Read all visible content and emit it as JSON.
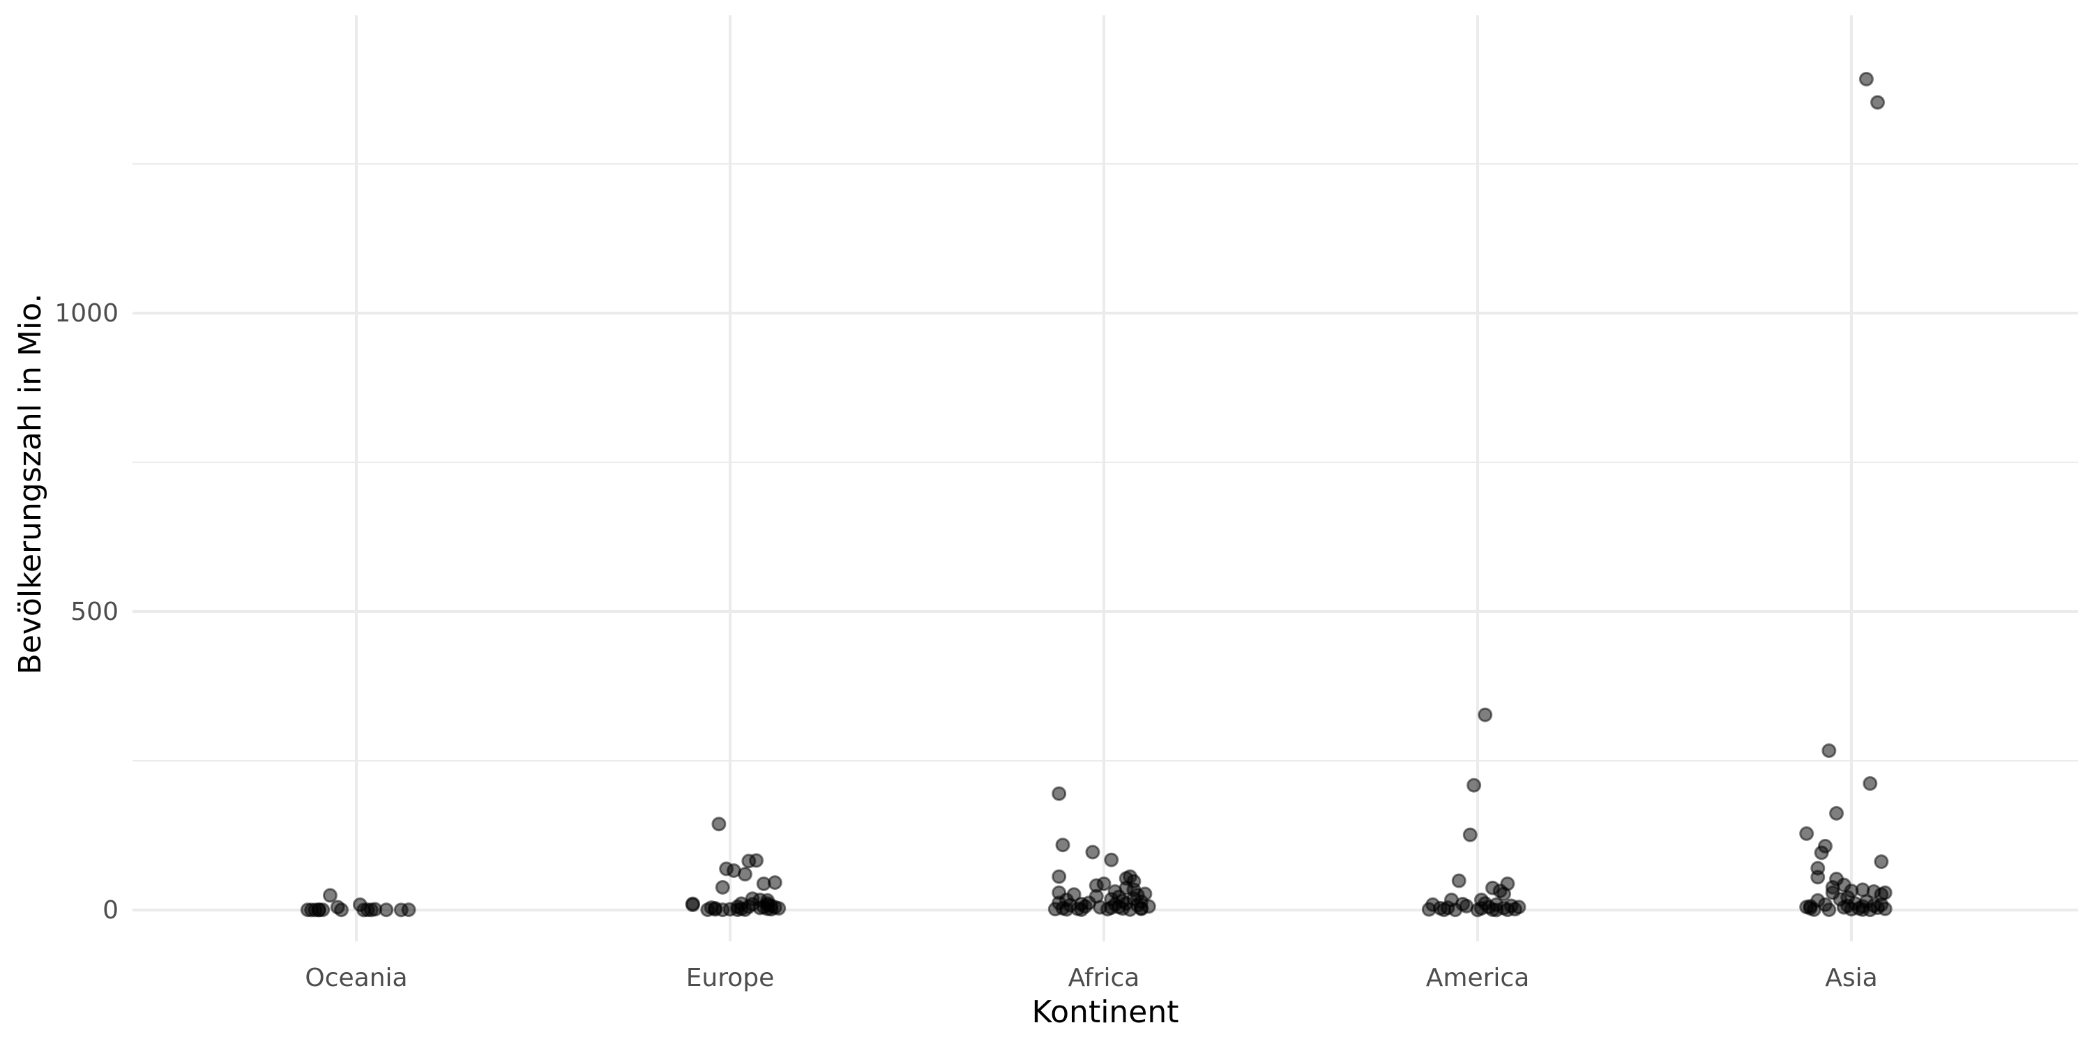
{
  "chart_data": {
    "type": "scatter",
    "title": "",
    "xlabel": "Kontinent",
    "ylabel": "Bevölkerungszahl in Mio.",
    "categories": [
      "Oceania",
      "Europe",
      "Africa",
      "America",
      "Asia"
    ],
    "y_ticks": [
      "0",
      "500",
      "1000"
    ],
    "ylim": [
      -55,
      1495
    ],
    "grid": true,
    "legend": "none",
    "point_color": "#000000",
    "series": [
      {
        "category": "Oceania",
        "points": [
          {
            "x": 0.14,
            "y": 0.5
          },
          {
            "x": 0.12,
            "y": 0.2
          },
          {
            "x": 0.08,
            "y": 0.3
          },
          {
            "x": 0.04,
            "y": 0.2
          },
          {
            "x": 0.03,
            "y": 0.4
          },
          {
            "x": 0.02,
            "y": 0.1
          },
          {
            "x": 0.01,
            "y": 8.9
          },
          {
            "x": -0.04,
            "y": 0.3
          },
          {
            "x": -0.05,
            "y": 4.8
          },
          {
            "x": -0.09,
            "y": 0.3
          },
          {
            "x": -0.1,
            "y": 0.2
          },
          {
            "x": -0.11,
            "y": 0.2
          },
          {
            "x": -0.13,
            "y": 0.3
          },
          {
            "x": -0.1,
            "y": 0.4
          },
          {
            "x": -0.07,
            "y": 24.5
          },
          {
            "x": 0.05,
            "y": 1.2
          },
          {
            "x": -0.12,
            "y": 0.1
          }
        ]
      },
      {
        "category": "Europe",
        "points": [
          {
            "x": -0.1,
            "y": 10.4
          },
          {
            "x": -0.1,
            "y": 8.7
          },
          {
            "x": -0.06,
            "y": 0.5
          },
          {
            "x": -0.05,
            "y": 4.0
          },
          {
            "x": -0.04,
            "y": 1.1
          },
          {
            "x": -0.04,
            "y": 2.9
          },
          {
            "x": -0.02,
            "y": 0.4
          },
          {
            "x": -0.02,
            "y": 38.0
          },
          {
            "x": -0.01,
            "y": 69.0
          },
          {
            "x": -0.03,
            "y": 144.0
          },
          {
            "x": 0.0,
            "y": 1.2
          },
          {
            "x": 0.01,
            "y": 66.0
          },
          {
            "x": 0.02,
            "y": 0.5
          },
          {
            "x": 0.02,
            "y": 5.5
          },
          {
            "x": 0.03,
            "y": 2.1
          },
          {
            "x": 0.03,
            "y": 10.6
          },
          {
            "x": 0.04,
            "y": 60.0
          },
          {
            "x": 0.04,
            "y": 0.6
          },
          {
            "x": 0.05,
            "y": 82.0
          },
          {
            "x": 0.05,
            "y": 5.8
          },
          {
            "x": 0.06,
            "y": 19.0
          },
          {
            "x": 0.06,
            "y": 9.7
          },
          {
            "x": 0.07,
            "y": 83.0
          },
          {
            "x": 0.08,
            "y": 17.0
          },
          {
            "x": 0.08,
            "y": 3.5
          },
          {
            "x": 0.09,
            "y": 4.8
          },
          {
            "x": 0.09,
            "y": 44.0
          },
          {
            "x": 0.1,
            "y": 8.5
          },
          {
            "x": 0.1,
            "y": 2.0
          },
          {
            "x": 0.11,
            "y": 7.0
          },
          {
            "x": 0.11,
            "y": 1.3
          },
          {
            "x": 0.1,
            "y": 11.0
          },
          {
            "x": 0.1,
            "y": 16.0
          },
          {
            "x": 0.12,
            "y": 46.0
          },
          {
            "x": 0.12,
            "y": 4.6
          },
          {
            "x": 0.13,
            "y": 2.8
          }
        ]
      },
      {
        "category": "Africa",
        "points": [
          {
            "x": -0.13,
            "y": 1.5
          },
          {
            "x": -0.12,
            "y": 195.0
          },
          {
            "x": -0.12,
            "y": 12.0
          },
          {
            "x": -0.12,
            "y": 29.0
          },
          {
            "x": -0.12,
            "y": 56.0
          },
          {
            "x": -0.11,
            "y": 3.0
          },
          {
            "x": -0.11,
            "y": 109.0
          },
          {
            "x": -0.1,
            "y": 1.0
          },
          {
            "x": -0.1,
            "y": 17.0
          },
          {
            "x": -0.09,
            "y": 8.0
          },
          {
            "x": -0.08,
            "y": 26.0
          },
          {
            "x": -0.07,
            "y": 2.0
          },
          {
            "x": -0.06,
            "y": 0.6
          },
          {
            "x": -0.05,
            "y": 6.0
          },
          {
            "x": -0.04,
            "y": 12.0
          },
          {
            "x": -0.03,
            "y": 97.0
          },
          {
            "x": -0.02,
            "y": 41.0
          },
          {
            "x": -0.02,
            "y": 23.0
          },
          {
            "x": -0.01,
            "y": 4.5
          },
          {
            "x": 0.0,
            "y": 44.0
          },
          {
            "x": 0.01,
            "y": 1.3
          },
          {
            "x": 0.02,
            "y": 84.0
          },
          {
            "x": 0.02,
            "y": 18.0
          },
          {
            "x": 0.03,
            "y": 9.5
          },
          {
            "x": 0.03,
            "y": 31.0
          },
          {
            "x": 0.04,
            "y": 5.0
          },
          {
            "x": 0.04,
            "y": 22.0
          },
          {
            "x": 0.05,
            "y": 15.0
          },
          {
            "x": 0.05,
            "y": 2.5
          },
          {
            "x": 0.06,
            "y": 37.0
          },
          {
            "x": 0.06,
            "y": 11.0
          },
          {
            "x": 0.07,
            "y": 56.0
          },
          {
            "x": 0.07,
            "y": 0.8
          },
          {
            "x": 0.08,
            "y": 48.0
          },
          {
            "x": 0.08,
            "y": 19.0
          },
          {
            "x": 0.09,
            "y": 8.0
          },
          {
            "x": 0.09,
            "y": 25.0
          },
          {
            "x": 0.1,
            "y": 3.0
          },
          {
            "x": 0.1,
            "y": 14.0
          },
          {
            "x": 0.11,
            "y": 27.0
          },
          {
            "x": 0.12,
            "y": 6.0
          },
          {
            "x": 0.08,
            "y": 34.0
          },
          {
            "x": 0.02,
            "y": 4.0
          },
          {
            "x": -0.06,
            "y": 10.0
          },
          {
            "x": 0.06,
            "y": 53.0
          },
          {
            "x": 0.1,
            "y": 1.9
          }
        ]
      },
      {
        "category": "America",
        "points": [
          {
            "x": -0.13,
            "y": 1.0
          },
          {
            "x": -0.12,
            "y": 9.0
          },
          {
            "x": -0.1,
            "y": 3.0
          },
          {
            "x": -0.09,
            "y": 0.4
          },
          {
            "x": -0.07,
            "y": 17.0
          },
          {
            "x": -0.06,
            "y": 0.3
          },
          {
            "x": -0.05,
            "y": 49.0
          },
          {
            "x": -0.04,
            "y": 10.0
          },
          {
            "x": -0.03,
            "y": 6.5
          },
          {
            "x": -0.02,
            "y": 126.0
          },
          {
            "x": -0.01,
            "y": 209.0
          },
          {
            "x": 0.0,
            "y": 0.2
          },
          {
            "x": 0.01,
            "y": 2.9
          },
          {
            "x": 0.01,
            "y": 17.0
          },
          {
            "x": 0.02,
            "y": 327.0
          },
          {
            "x": 0.02,
            "y": 11.0
          },
          {
            "x": 0.03,
            "y": 4.9
          },
          {
            "x": 0.04,
            "y": 37.0
          },
          {
            "x": 0.05,
            "y": 0.1
          },
          {
            "x": 0.05,
            "y": 9.0
          },
          {
            "x": 0.06,
            "y": 32.0
          },
          {
            "x": 0.07,
            "y": 3.4
          },
          {
            "x": 0.08,
            "y": 44.0
          },
          {
            "x": 0.09,
            "y": 7.0
          },
          {
            "x": 0.1,
            "y": 1.4
          },
          {
            "x": 0.11,
            "y": 5.0
          },
          {
            "x": 0.07,
            "y": 27.0
          },
          {
            "x": 0.04,
            "y": 0.6
          },
          {
            "x": -0.08,
            "y": 3.9
          },
          {
            "x": 0.08,
            "y": 0.4
          }
        ]
      },
      {
        "category": "Asia",
        "points": [
          {
            "x": -0.12,
            "y": 128.0
          },
          {
            "x": -0.12,
            "y": 5.0
          },
          {
            "x": -0.11,
            "y": 3.0
          },
          {
            "x": -0.1,
            "y": 0.7
          },
          {
            "x": -0.09,
            "y": 55.0
          },
          {
            "x": -0.09,
            "y": 70.0
          },
          {
            "x": -0.09,
            "y": 16.0
          },
          {
            "x": -0.08,
            "y": 96.0
          },
          {
            "x": -0.07,
            "y": 107.0
          },
          {
            "x": -0.07,
            "y": 9.0
          },
          {
            "x": -0.06,
            "y": 267.0
          },
          {
            "x": -0.05,
            "y": 38.0
          },
          {
            "x": -0.05,
            "y": 29.0
          },
          {
            "x": -0.04,
            "y": 162.0
          },
          {
            "x": -0.04,
            "y": 52.0
          },
          {
            "x": -0.03,
            "y": 18.0
          },
          {
            "x": -0.02,
            "y": 4.5
          },
          {
            "x": -0.02,
            "y": 42.0
          },
          {
            "x": -0.01,
            "y": 7.0
          },
          {
            "x": 0.0,
            "y": 1.3
          },
          {
            "x": 0.0,
            "y": 32.0
          },
          {
            "x": 0.01,
            "y": 11.0
          },
          {
            "x": 0.02,
            "y": 2.8
          },
          {
            "x": 0.03,
            "y": 34.0
          },
          {
            "x": 0.03,
            "y": 6.0
          },
          {
            "x": 0.04,
            "y": 14.0
          },
          {
            "x": 0.04,
            "y": 1392.0
          },
          {
            "x": 0.05,
            "y": 212.0
          },
          {
            "x": 0.05,
            "y": 0.4
          },
          {
            "x": 0.06,
            "y": 31.0
          },
          {
            "x": 0.07,
            "y": 1353.0
          },
          {
            "x": 0.07,
            "y": 4.0
          },
          {
            "x": 0.08,
            "y": 26.0
          },
          {
            "x": 0.08,
            "y": 81.0
          },
          {
            "x": 0.08,
            "y": 9.0
          },
          {
            "x": 0.09,
            "y": 29.0
          },
          {
            "x": 0.09,
            "y": 2.0
          },
          {
            "x": 0.03,
            "y": 0.8
          },
          {
            "x": -0.06,
            "y": 0.5
          },
          {
            "x": 0.06,
            "y": 7.5
          },
          {
            "x": -0.11,
            "y": 6.3
          },
          {
            "x": -0.01,
            "y": 21.0
          }
        ]
      }
    ]
  }
}
